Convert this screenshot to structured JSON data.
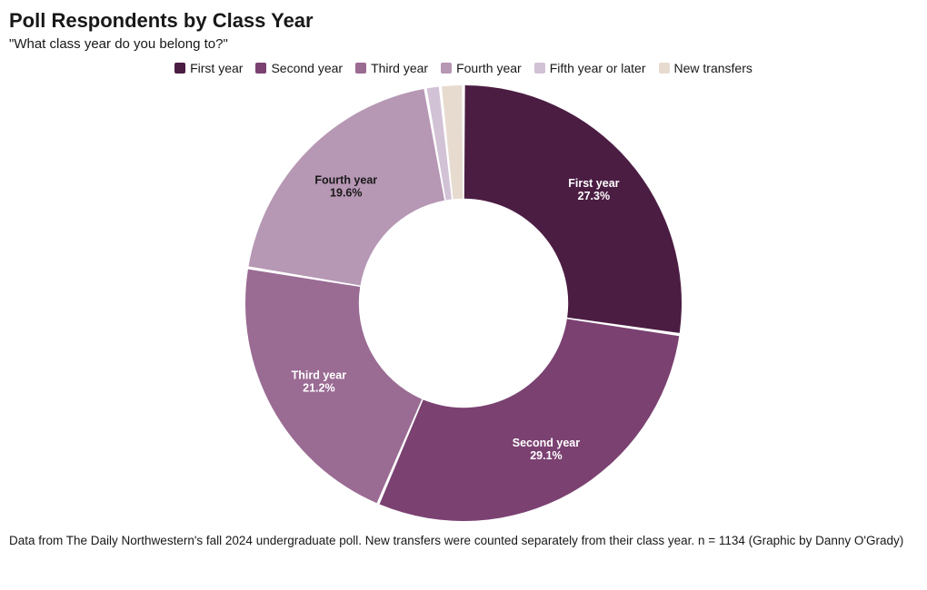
{
  "title": "Poll Respondents by Class Year",
  "subtitle": "\"What class year do you belong to?\"",
  "caption": "Data from The Daily Northwestern's fall 2024 undergraduate poll. New transfers were counted separately from their class year. n = 1134 (Graphic by Danny O'Grady)",
  "chart": {
    "type": "donut",
    "inner_radius_ratio": 0.48,
    "outer_radius": 240,
    "gap_deg": 0.8,
    "background_color": "#ffffff",
    "slices": [
      {
        "label": "First year",
        "value": 27.3,
        "pct": "27.3%",
        "color": "#4b1d43",
        "textColor": "light"
      },
      {
        "label": "Second year",
        "value": 29.1,
        "pct": "29.1%",
        "color": "#7a4171",
        "textColor": "light"
      },
      {
        "label": "Third year",
        "value": 21.2,
        "pct": "21.2%",
        "color": "#9a6b93",
        "textColor": "light"
      },
      {
        "label": "Fourth year",
        "value": 19.6,
        "pct": "19.6%",
        "color": "#b697b4",
        "textColor": "dark"
      },
      {
        "label": "Fifth year or later",
        "value": 1.1,
        "pct": "1.1%",
        "color": "#d2c2d6",
        "textColor": "dark"
      },
      {
        "label": "New transfers",
        "value": 1.7,
        "pct": null,
        "color": "#e7dbcf",
        "textColor": "dark"
      }
    ]
  },
  "typography": {
    "title_fontsize": 22,
    "title_weight": 700,
    "subtitle_fontsize": 15,
    "legend_fontsize": 14,
    "caption_fontsize": 13.5,
    "slice_label_fontsize": 12.5
  }
}
